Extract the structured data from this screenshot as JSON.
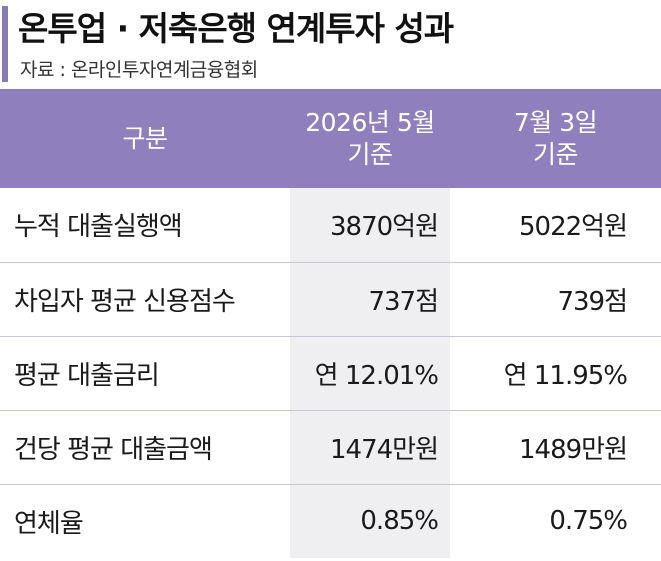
{
  "title": "온투업 · 저축은행 연계투자 성과",
  "source": "자료 : 온라인투자연계금융협회",
  "table": {
    "headers": {
      "category": "구분",
      "col1_line1": "2026년 5월",
      "col1_line2": "기준",
      "col2_line1": "7월 3일",
      "col2_line2": "기준"
    },
    "rows": [
      {
        "label": "누적 대출실행액",
        "v1": "3870억원",
        "v2": "5022억원"
      },
      {
        "label": "차입자 평균 신용점수",
        "v1": "737점",
        "v2": "739점"
      },
      {
        "label": "평균 대출금리",
        "v1": "연 12.01%",
        "v2": "연 11.95%"
      },
      {
        "label": "건당 평균 대출금액",
        "v1": "1474만원",
        "v2": "1489만원"
      },
      {
        "label": "연체율",
        "v1": "0.85%",
        "v2": "0.75%"
      }
    ]
  },
  "colors": {
    "accent": "#8f7fbd",
    "title_bar": "#8a7bb5",
    "shaded_column": "#efeff1"
  }
}
